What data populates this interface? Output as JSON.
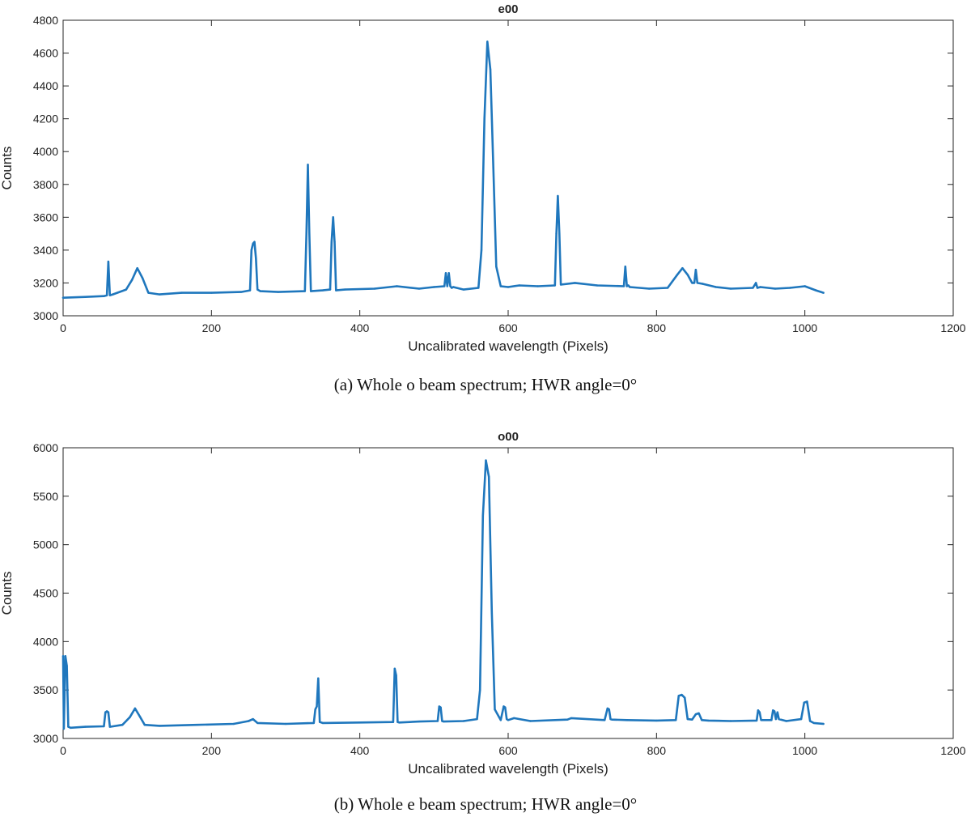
{
  "chart_data": [
    {
      "type": "line",
      "title": "e00",
      "caption": "(a) Whole o beam spectrum; HWR angle=0°",
      "xlabel": "Uncalibrated wavelength (Pixels)",
      "ylabel": "Counts",
      "xlim": [
        0,
        1200
      ],
      "ylim": [
        3000,
        4800
      ],
      "xticks": [
        0,
        200,
        400,
        600,
        800,
        1000,
        1200
      ],
      "yticks": [
        3000,
        3200,
        3400,
        3600,
        3800,
        4000,
        4200,
        4400,
        4600,
        4800
      ],
      "color": "#1f77bd",
      "grid": false,
      "series": [
        {
          "x": [
            0,
            30,
            55,
            59,
            61,
            63,
            67,
            85,
            93,
            100,
            107,
            115,
            130,
            160,
            200,
            240,
            252,
            254,
            256,
            258,
            260,
            262,
            266,
            290,
            326,
            328,
            330,
            332,
            334,
            350,
            360,
            362,
            364,
            366,
            368,
            380,
            420,
            450,
            480,
            500,
            514,
            516,
            518,
            520,
            522,
            524,
            526,
            540,
            560,
            564,
            568,
            572,
            576,
            580,
            584,
            590,
            600,
            615,
            640,
            663,
            665,
            667,
            669,
            671,
            690,
            720,
            756,
            758,
            760,
            762,
            764,
            790,
            815,
            828,
            835,
            842,
            848,
            851,
            853,
            855,
            862,
            880,
            900,
            930,
            934,
            936,
            940,
            960,
            980,
            1000,
            1015,
            1025
          ],
          "y": [
            3110,
            3115,
            3120,
            3125,
            3330,
            3125,
            3130,
            3160,
            3220,
            3290,
            3230,
            3140,
            3130,
            3140,
            3140,
            3145,
            3155,
            3400,
            3440,
            3450,
            3350,
            3160,
            3150,
            3145,
            3150,
            3500,
            3920,
            3500,
            3150,
            3155,
            3160,
            3450,
            3600,
            3450,
            3155,
            3160,
            3165,
            3180,
            3165,
            3175,
            3180,
            3260,
            3180,
            3260,
            3180,
            3170,
            3175,
            3160,
            3170,
            3400,
            4200,
            4670,
            4500,
            3900,
            3300,
            3180,
            3175,
            3185,
            3180,
            3185,
            3500,
            3730,
            3500,
            3190,
            3200,
            3185,
            3180,
            3300,
            3180,
            3185,
            3175,
            3165,
            3170,
            3250,
            3290,
            3250,
            3200,
            3200,
            3280,
            3200,
            3195,
            3175,
            3165,
            3170,
            3200,
            3170,
            3175,
            3165,
            3170,
            3180,
            3155,
            3140
          ]
        }
      ]
    },
    {
      "type": "line",
      "title": "o00",
      "caption": "(b) Whole e beam spectrum; HWR angle=0°",
      "xlabel": "Uncalibrated wavelength (Pixels)",
      "ylabel": "Counts",
      "xlim": [
        0,
        1200
      ],
      "ylim": [
        3000,
        6000
      ],
      "xticks": [
        0,
        200,
        400,
        600,
        800,
        1000,
        1200
      ],
      "yticks": [
        3000,
        3500,
        4000,
        4500,
        5000,
        5500,
        6000
      ],
      "color": "#1f77bd",
      "grid": false,
      "series": [
        {
          "x": [
            0,
            1,
            3,
            5,
            7,
            10,
            30,
            55,
            57,
            59,
            61,
            63,
            80,
            90,
            97,
            104,
            110,
            130,
            180,
            230,
            250,
            256,
            262,
            300,
            338,
            340,
            342,
            344,
            346,
            350,
            400,
            445,
            447,
            449,
            451,
            453,
            480,
            505,
            507,
            509,
            511,
            513,
            540,
            558,
            562,
            566,
            570,
            574,
            578,
            582,
            590,
            594,
            596,
            598,
            600,
            608,
            630,
            680,
            685,
            730,
            734,
            736,
            738,
            740,
            760,
            800,
            826,
            830,
            834,
            838,
            842,
            848,
            853,
            857,
            861,
            870,
            900,
            935,
            937,
            939,
            941,
            955,
            957,
            959,
            961,
            963,
            965,
            975,
            995,
            999,
            1003,
            1007,
            1012,
            1025
          ],
          "y": [
            3850,
            3100,
            3850,
            3750,
            3120,
            3110,
            3120,
            3125,
            3270,
            3280,
            3270,
            3120,
            3140,
            3220,
            3310,
            3220,
            3140,
            3130,
            3140,
            3150,
            3180,
            3200,
            3160,
            3150,
            3160,
            3300,
            3330,
            3620,
            3170,
            3160,
            3165,
            3170,
            3720,
            3650,
            3170,
            3165,
            3175,
            3180,
            3330,
            3320,
            3180,
            3175,
            3180,
            3200,
            3500,
            5300,
            5870,
            5700,
            4300,
            3300,
            3190,
            3330,
            3320,
            3200,
            3190,
            3210,
            3180,
            3195,
            3210,
            3190,
            3310,
            3300,
            3200,
            3195,
            3190,
            3185,
            3190,
            3440,
            3450,
            3420,
            3200,
            3195,
            3250,
            3260,
            3190,
            3185,
            3180,
            3185,
            3290,
            3270,
            3190,
            3190,
            3290,
            3280,
            3200,
            3270,
            3200,
            3180,
            3200,
            3370,
            3380,
            3180,
            3160,
            3150
          ]
        }
      ]
    }
  ]
}
